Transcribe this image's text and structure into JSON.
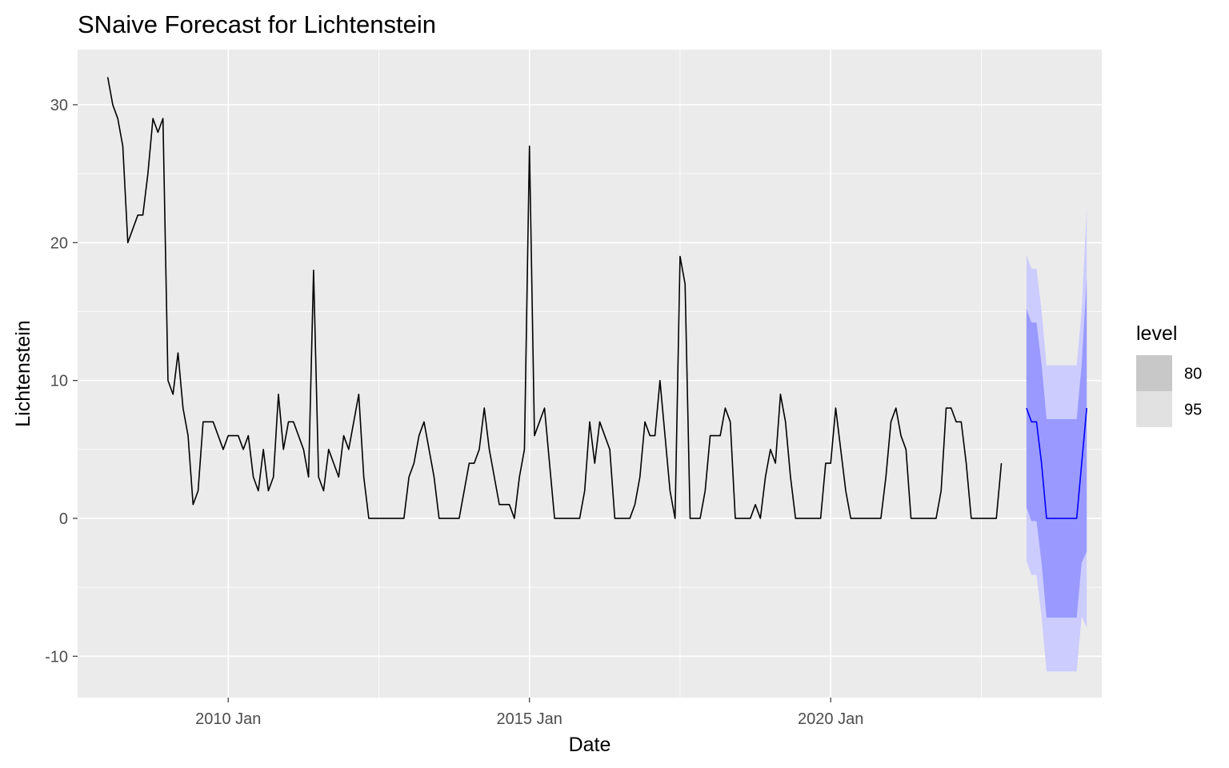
{
  "chart_data": {
    "type": "line",
    "title": "SNaive Forecast for Lichtenstein",
    "xlabel": "Date",
    "ylabel": "Lichtenstein",
    "xlim": [
      2007.5,
      2024.5
    ],
    "ylim": [
      -13,
      34
    ],
    "grid": true,
    "x_ticks": [
      {
        "value": 2010.0,
        "label": "2010 Jan"
      },
      {
        "value": 2015.0,
        "label": "2015 Jan"
      },
      {
        "value": 2020.0,
        "label": "2020 Jan"
      }
    ],
    "y_ticks": [
      {
        "value": -10,
        "label": "-10"
      },
      {
        "value": 0,
        "label": "0"
      },
      {
        "value": 10,
        "label": "10"
      },
      {
        "value": 20,
        "label": "20"
      },
      {
        "value": 30,
        "label": "30"
      }
    ],
    "series_start": 2008.0,
    "series_step": 0.08333333,
    "series": [
      {
        "values": [
          32,
          30,
          29,
          27,
          20,
          21,
          22,
          22,
          25,
          29,
          28,
          29,
          10,
          9,
          12,
          8,
          6,
          1,
          2,
          7,
          7,
          7,
          6,
          5,
          6,
          6,
          6,
          5,
          6,
          3,
          2,
          5,
          2,
          3,
          9,
          5,
          7,
          7,
          6,
          5,
          3,
          18,
          3,
          2,
          5,
          4,
          3,
          6,
          5,
          7,
          9,
          3,
          0,
          0,
          0,
          0,
          0,
          0,
          0,
          0,
          3,
          4,
          6,
          7,
          5,
          3,
          0,
          0,
          0,
          0,
          0,
          2,
          4,
          4,
          5,
          8,
          5,
          3,
          1,
          1,
          1,
          0,
          3,
          5,
          27,
          6,
          7,
          8,
          4,
          0,
          0,
          0,
          0,
          0,
          0,
          2,
          7,
          4,
          7,
          6,
          5,
          0,
          0,
          0,
          0,
          1,
          3,
          7,
          6,
          6,
          10,
          6,
          2,
          0,
          19,
          17,
          0,
          0,
          0,
          2,
          6,
          6,
          6,
          8,
          7,
          0,
          0,
          0,
          0,
          1,
          0,
          3,
          5,
          4,
          9,
          7,
          3,
          0,
          0,
          0,
          0,
          0,
          0,
          4,
          4,
          8,
          5,
          2,
          0,
          0,
          0,
          0,
          0,
          0,
          0,
          3,
          7,
          8,
          6,
          5,
          0,
          0,
          0,
          0,
          0,
          0,
          2,
          8,
          8,
          7,
          7,
          4,
          0,
          0,
          0,
          0,
          0,
          0,
          4
        ],
        "color": "#000000"
      }
    ],
    "forecast": {
      "start": 2023.25,
      "step": 0.08333333,
      "color": "#0000ff",
      "mean": [
        8,
        7,
        7,
        4,
        0,
        0,
        0,
        0,
        0,
        0,
        0,
        4,
        8
      ],
      "level80": {
        "label": "80",
        "lower": [
          0.8,
          -0.2,
          -0.2,
          -3.2,
          -7.2,
          -7.2,
          -7.2,
          -7.2,
          -7.2,
          -7.2,
          -7.2,
          -3.2,
          -2.4
        ],
        "upper": [
          15.2,
          14.2,
          14.2,
          11.2,
          7.2,
          7.2,
          7.2,
          7.2,
          7.2,
          7.2,
          7.2,
          11.2,
          17.4
        ],
        "color": "#9999ff"
      },
      "level95": {
        "label": "95",
        "lower": [
          -3.1,
          -4.1,
          -4.1,
          -7.1,
          -11.1,
          -11.1,
          -11.1,
          -11.1,
          -11.1,
          -11.1,
          -11.1,
          -7.1,
          -7.9
        ],
        "upper": [
          19.1,
          18.1,
          18.1,
          15.1,
          11.1,
          11.1,
          11.1,
          11.1,
          11.1,
          11.1,
          11.1,
          15.1,
          22.5
        ],
        "color": "#ccccff"
      }
    },
    "legend": {
      "title": "level",
      "position": "right",
      "items": [
        {
          "label": "80",
          "color": "#c8c8c8"
        },
        {
          "label": "95",
          "color": "#e1e1e1"
        }
      ]
    }
  }
}
